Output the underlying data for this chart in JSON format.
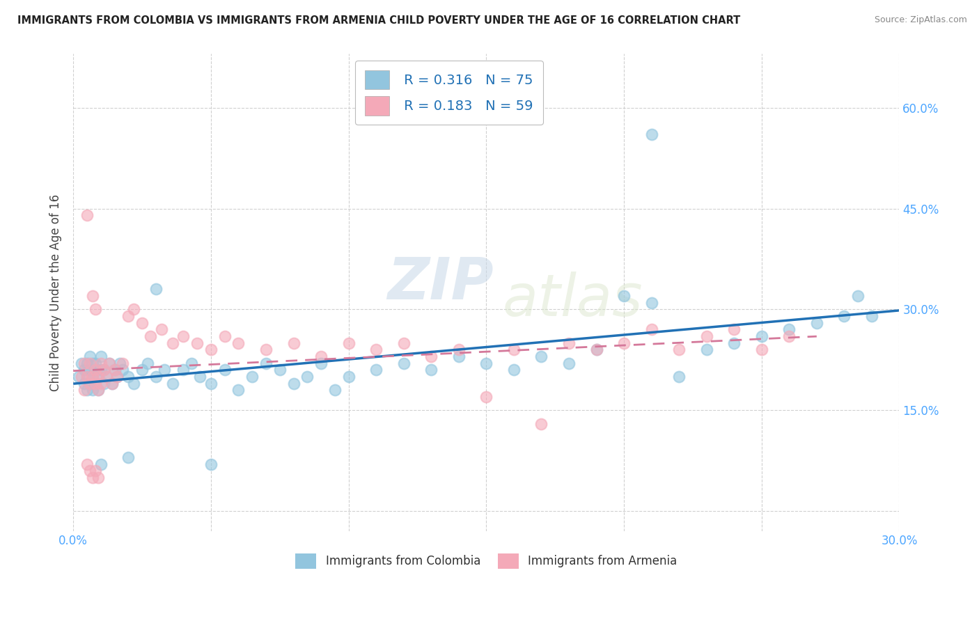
{
  "title": "IMMIGRANTS FROM COLOMBIA VS IMMIGRANTS FROM ARMENIA CHILD POVERTY UNDER THE AGE OF 16 CORRELATION CHART",
  "source": "Source: ZipAtlas.com",
  "ylabel": "Child Poverty Under the Age of 16",
  "xlim": [
    0.0,
    0.3
  ],
  "ylim": [
    -0.03,
    0.68
  ],
  "colombia_R": 0.316,
  "colombia_N": 75,
  "armenia_R": 0.183,
  "armenia_N": 59,
  "colombia_color": "#92c5de",
  "armenia_color": "#f4a9b8",
  "colombia_line_color": "#2171b5",
  "armenia_line_color": "#d4789a",
  "legend_colombia": "Immigrants from Colombia",
  "legend_armenia": "Immigrants from Armenia",
  "ytick_vals": [
    0.0,
    0.15,
    0.3,
    0.45,
    0.6
  ],
  "ytick_labels": [
    "",
    "15.0%",
    "30.0%",
    "45.0%",
    "60.0%"
  ],
  "xtick_vals": [
    0.0,
    0.05,
    0.1,
    0.15,
    0.2,
    0.25,
    0.3
  ],
  "xtick_labels": [
    "0.0%",
    "",
    "",
    "",
    "",
    "",
    "30.0%"
  ],
  "tick_color": "#4da6ff",
  "watermark1": "ZIP",
  "watermark2": "atlas",
  "grid_color": "#d0d0d0",
  "colombia_x": [
    0.002,
    0.003,
    0.004,
    0.004,
    0.005,
    0.005,
    0.005,
    0.006,
    0.006,
    0.006,
    0.007,
    0.007,
    0.007,
    0.008,
    0.008,
    0.008,
    0.009,
    0.009,
    0.01,
    0.01,
    0.011,
    0.011,
    0.012,
    0.013,
    0.014,
    0.015,
    0.016,
    0.017,
    0.018,
    0.02,
    0.022,
    0.025,
    0.027,
    0.03,
    0.033,
    0.036,
    0.04,
    0.043,
    0.046,
    0.05,
    0.055,
    0.06,
    0.065,
    0.07,
    0.075,
    0.08,
    0.085,
    0.09,
    0.095,
    0.1,
    0.11,
    0.12,
    0.13,
    0.14,
    0.15,
    0.16,
    0.17,
    0.18,
    0.19,
    0.2,
    0.21,
    0.22,
    0.23,
    0.24,
    0.25,
    0.26,
    0.27,
    0.28,
    0.285,
    0.29,
    0.21,
    0.01,
    0.02,
    0.03,
    0.05
  ],
  "colombia_y": [
    0.2,
    0.22,
    0.19,
    0.21,
    0.18,
    0.2,
    0.22,
    0.21,
    0.19,
    0.23,
    0.2,
    0.22,
    0.18,
    0.21,
    0.19,
    0.22,
    0.2,
    0.18,
    0.21,
    0.23,
    0.19,
    0.21,
    0.2,
    0.22,
    0.19,
    0.21,
    0.2,
    0.22,
    0.21,
    0.2,
    0.19,
    0.21,
    0.22,
    0.2,
    0.21,
    0.19,
    0.21,
    0.22,
    0.2,
    0.19,
    0.21,
    0.18,
    0.2,
    0.22,
    0.21,
    0.19,
    0.2,
    0.22,
    0.18,
    0.2,
    0.21,
    0.22,
    0.21,
    0.23,
    0.22,
    0.21,
    0.23,
    0.22,
    0.24,
    0.32,
    0.31,
    0.2,
    0.24,
    0.25,
    0.26,
    0.27,
    0.28,
    0.29,
    0.32,
    0.29,
    0.56,
    0.07,
    0.08,
    0.33,
    0.07
  ],
  "armenia_x": [
    0.003,
    0.004,
    0.004,
    0.005,
    0.005,
    0.006,
    0.006,
    0.007,
    0.007,
    0.008,
    0.008,
    0.008,
    0.009,
    0.009,
    0.01,
    0.01,
    0.011,
    0.012,
    0.013,
    0.014,
    0.015,
    0.016,
    0.018,
    0.02,
    0.022,
    0.025,
    0.028,
    0.032,
    0.036,
    0.04,
    0.045,
    0.05,
    0.055,
    0.06,
    0.07,
    0.08,
    0.09,
    0.1,
    0.11,
    0.12,
    0.13,
    0.14,
    0.15,
    0.16,
    0.17,
    0.18,
    0.19,
    0.2,
    0.21,
    0.22,
    0.23,
    0.24,
    0.25,
    0.26,
    0.005,
    0.006,
    0.007,
    0.008,
    0.009
  ],
  "armenia_y": [
    0.2,
    0.18,
    0.22,
    0.44,
    0.2,
    0.19,
    0.22,
    0.2,
    0.32,
    0.19,
    0.21,
    0.3,
    0.2,
    0.18,
    0.22,
    0.19,
    0.21,
    0.2,
    0.22,
    0.19,
    0.21,
    0.2,
    0.22,
    0.29,
    0.3,
    0.28,
    0.26,
    0.27,
    0.25,
    0.26,
    0.25,
    0.24,
    0.26,
    0.25,
    0.24,
    0.25,
    0.23,
    0.25,
    0.24,
    0.25,
    0.23,
    0.24,
    0.17,
    0.24,
    0.13,
    0.25,
    0.24,
    0.25,
    0.27,
    0.24,
    0.26,
    0.27,
    0.24,
    0.26,
    0.07,
    0.06,
    0.05,
    0.06,
    0.05
  ]
}
